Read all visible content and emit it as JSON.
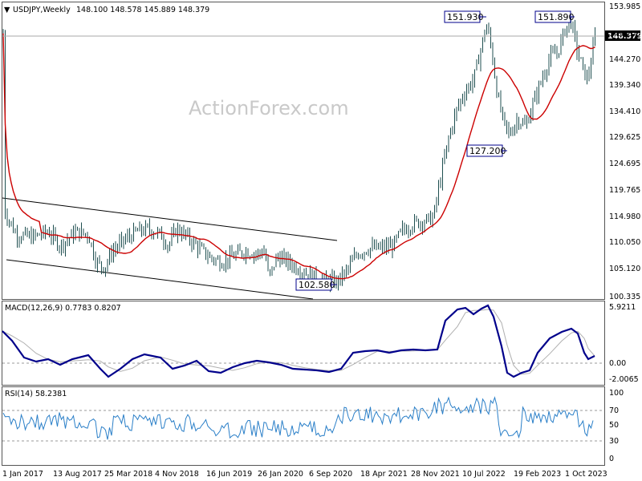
{
  "header": {
    "symbol": "USDJPY,Weekly",
    "ohlc": "148.100 148.578 145.889 148.379"
  },
  "watermark": "ActionForex.com",
  "colors": {
    "candle": "#1f4f50",
    "ma": "#cc0000",
    "macd": "#00008b",
    "signal": "#b0b0b0",
    "rsi": "#2a7fc8",
    "channel": "#000000",
    "grid": "#888888"
  },
  "x_axis_labels": [
    "1 Jan 2017",
    "13 Aug 2017",
    "25 Mar 2018",
    "4 Nov 2018",
    "16 Jun 2019",
    "26 Jan 2020",
    "6 Sep 2020",
    "18 Apr 2021",
    "28 Nov 2021",
    "10 Jul 2022",
    "19 Feb 2023",
    "1 Oct 2023"
  ],
  "price_panel": {
    "y_ticks": [
      "153.985",
      "149.200",
      "144.270",
      "139.340",
      "134.410",
      "129.625",
      "124.695",
      "119.765",
      "114.980",
      "110.050",
      "105.120",
      "100.335"
    ],
    "current_price": "148.379",
    "annotations": [
      "151.930",
      "151.890",
      "127.200",
      "102.580"
    ]
  },
  "macd_panel": {
    "title": "MACD(12,26,9) 0.7783 0.8207",
    "y_ticks": [
      "5.9211",
      "0.00",
      "-2.0065"
    ]
  },
  "rsi_panel": {
    "title": "RSI(14) 58.2381",
    "y_ticks": [
      "100",
      "70",
      "50",
      "30",
      "0"
    ]
  },
  "chart_data": {
    "type": "candlestick",
    "title": "USDJPY,Weekly",
    "x_labels": [
      "1 Jan 2017",
      "13 Aug 2017",
      "25 Mar 2018",
      "4 Nov 2018",
      "16 Jun 2019",
      "26 Jan 2020",
      "6 Sep 2020",
      "18 Apr 2021",
      "28 Nov 2021",
      "10 Jul 2022",
      "19 Feb 2023",
      "1 Oct 2023"
    ],
    "price_keypoints": [
      {
        "x": "1 Jan 2017",
        "close": 116.8
      },
      {
        "x": "13 Aug 2017",
        "close": 111.5
      },
      {
        "x": "25 Mar 2018",
        "close": 106.0
      },
      {
        "x": "4 Nov 2018",
        "close": 112.8
      },
      {
        "x": "16 Jun 2019",
        "close": 108.0
      },
      {
        "x": "26 Jan 2020",
        "close": 109.3
      },
      {
        "x": "6 Sep 2020",
        "close": 106.0
      },
      {
        "x": "18 Apr 2021",
        "close": 108.8
      },
      {
        "x": "28 Nov 2021",
        "close": 113.5
      },
      {
        "x": "10 Jul 2022",
        "close": 136.0
      },
      {
        "x": "19 Feb 2023",
        "close": 134.0
      },
      {
        "x": "1 Oct 2023",
        "close": 148.4
      }
    ],
    "annotated_levels": [
      151.93,
      151.89,
      127.2,
      102.58
    ],
    "ylim": [
      100.335,
      153.985
    ],
    "macd": {
      "value": 0.7783,
      "signal": 0.8207,
      "ylim": [
        -2.0065,
        5.9211
      ]
    },
    "rsi": {
      "value": 58.2381,
      "levels": [
        70,
        30
      ],
      "ylim": [
        0,
        100
      ]
    }
  }
}
